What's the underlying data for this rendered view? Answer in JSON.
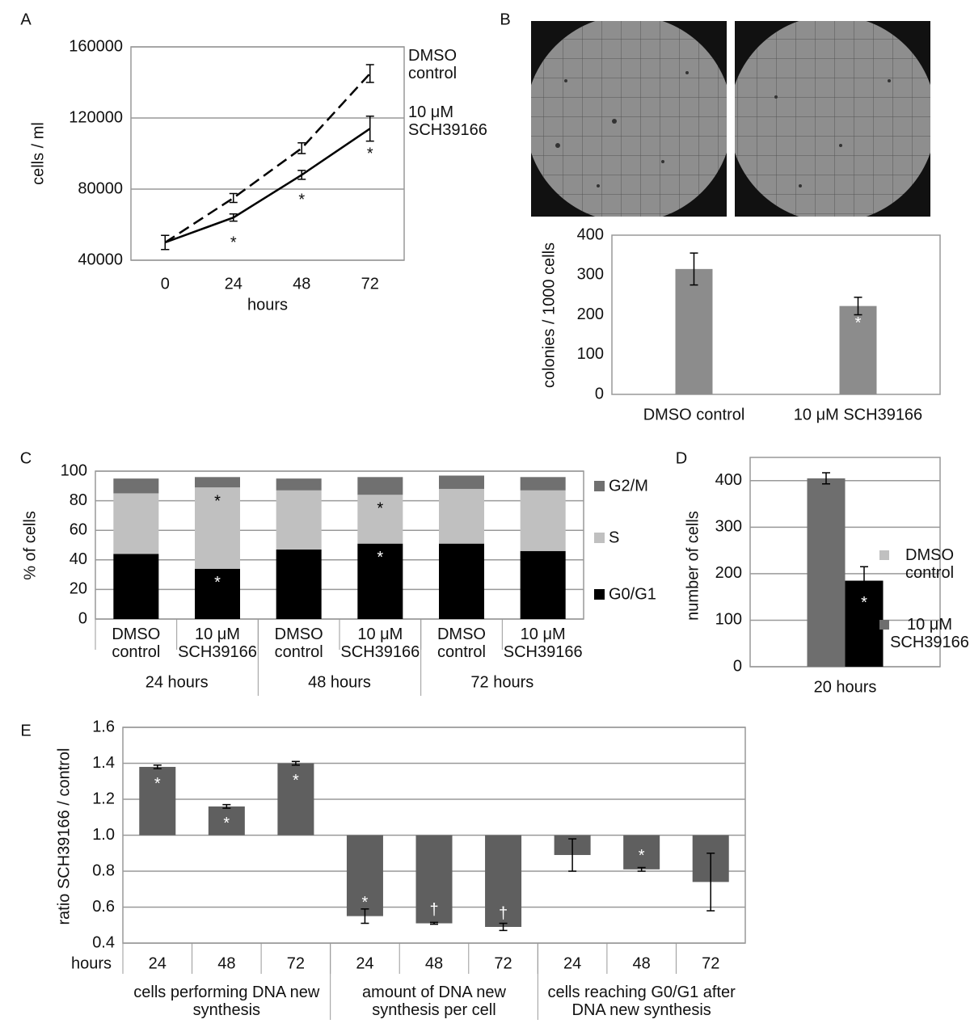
{
  "chart_data": [
    {
      "type": "line",
      "panel": "A",
      "categories": [
        "0",
        "24",
        "48",
        "72"
      ],
      "xlabel": "hours",
      "ylabel": "cells / ml",
      "ylim": [
        40000,
        160000
      ],
      "yticks": [
        40000,
        80000,
        120000,
        160000
      ],
      "grid": true,
      "series": [
        {
          "name": "DMSO control",
          "color": "#000000",
          "dashed": true,
          "values": [
            50000,
            75000,
            103000,
            145000
          ],
          "errors": [
            4000,
            2500,
            3000,
            5000
          ]
        },
        {
          "name": "10 μM SCH39166",
          "color": "#000000",
          "dashed": false,
          "values": [
            50000,
            64000,
            88000,
            114000
          ],
          "errors": [
            4000,
            2000,
            2500,
            7000
          ],
          "significance": [
            null,
            "*",
            "*",
            "*"
          ]
        }
      ]
    },
    {
      "type": "bar",
      "panel": "B",
      "categories": [
        "DMSO control",
        "10 μM SCH39166"
      ],
      "ylabel": "colonies / 1000 cells",
      "ylim": [
        0,
        400
      ],
      "yticks": [
        0,
        100,
        200,
        300,
        400
      ],
      "grid": false,
      "color": "#8c8c8c",
      "values": [
        315,
        222
      ],
      "errors": [
        40,
        22
      ],
      "significance": [
        null,
        "*"
      ]
    },
    {
      "type": "stacked-bar",
      "panel": "C",
      "categories": [
        "DMSO control",
        "10 μM SCH39166",
        "DMSO control",
        "10 μM SCH39166",
        "DMSO control",
        "10 μM SCH39166"
      ],
      "groups": [
        "24 hours",
        "48 hours",
        "72 hours"
      ],
      "ylabel": "% of cells",
      "ylim": [
        0,
        100
      ],
      "yticks": [
        0,
        20,
        40,
        60,
        80,
        100
      ],
      "grid": true,
      "series": [
        {
          "name": "G0/G1",
          "color": "#000000",
          "values": [
            44,
            34,
            47,
            51,
            51,
            46
          ],
          "significance": [
            null,
            "*",
            null,
            "*",
            null,
            null
          ]
        },
        {
          "name": "S",
          "color": "#c0c0c0",
          "values": [
            41,
            55,
            40,
            33,
            37,
            41
          ],
          "significance": [
            null,
            "*",
            null,
            "*",
            null,
            null
          ]
        },
        {
          "name": "G2/M",
          "color": "#707070",
          "values": [
            10,
            7,
            8,
            12,
            9,
            9
          ]
        }
      ]
    },
    {
      "type": "grouped-bar",
      "panel": "D",
      "categories": [
        "20 hours"
      ],
      "ylabel": "number of cells",
      "ylim": [
        0,
        450
      ],
      "yticks": [
        0,
        100,
        200,
        300,
        400
      ],
      "grid": true,
      "series": [
        {
          "name": "DMSO control",
          "color": "#6e6e6e",
          "legend_color": "#c0c0c0",
          "values": [
            405
          ],
          "errors": [
            12
          ]
        },
        {
          "name": "10 μM SCH39166",
          "color": "#000000",
          "legend_color": "#6e6e6e",
          "values": [
            185
          ],
          "errors": [
            30
          ],
          "significance": [
            "*"
          ]
        }
      ]
    },
    {
      "type": "bar",
      "panel": "E",
      "categories": [
        "24",
        "48",
        "72",
        "24",
        "48",
        "72",
        "24",
        "48",
        "72"
      ],
      "xlabel": "hours",
      "groups": [
        "cells performing DNA new synthesis",
        "amount of DNA new synthesis per cell",
        "cells reaching G0/G1 after DNA new synthesis"
      ],
      "ylabel": "ratio SCH39166 / control",
      "ylim": [
        0.4,
        1.6
      ],
      "yticks": [
        0.4,
        0.6,
        0.8,
        {
          "value": 1,
          "label": "1.0"
        },
        1.2,
        1.4,
        1.6
      ],
      "grid": true,
      "baseline": 1,
      "color": "#5f5f5f",
      "values": [
        1.38,
        1.16,
        1.4,
        0.55,
        0.51,
        0.49,
        0.89,
        0.81,
        0.74
      ],
      "errors": [
        0.01,
        0.01,
        0.01,
        0.04,
        0.005,
        0.02,
        0.09,
        0.01,
        0.16
      ],
      "significance": [
        "*",
        "*",
        "*",
        "*",
        "†",
        "†",
        null,
        "*",
        null
      ]
    }
  ]
}
